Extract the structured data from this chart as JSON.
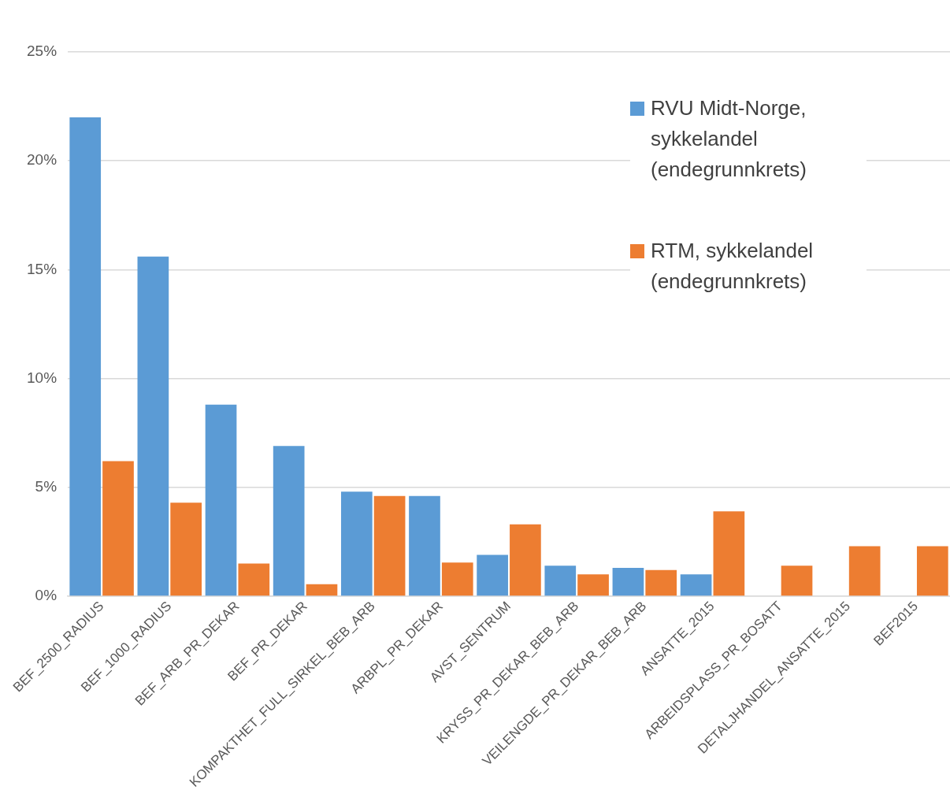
{
  "chart_data": {
    "type": "bar",
    "categories": [
      "BEF_2500_RADIUS",
      "BEF_1000_RADIUS",
      "BEF_ARB_PR_DEKAR",
      "BEF_PR_DEKAR",
      "KOMPAKTHET_FULL_SIRKEL_BEB_ARB",
      "ARBPL_PR_DEKAR",
      "AVST_SENTRUM",
      "KRYSS_PR_DEKAR_BEB_ARB",
      "VEILENGDE_PR_DEKAR_BEB_ARB",
      "ANSATTE_2015",
      "ARBEIDSPLASS_PR_BOSATT",
      "DETALJHANDEL_ANSATTE_2015",
      "BEF2015"
    ],
    "series": [
      {
        "name": "RVU Midt-Norge, sykkelandel (endegrunnkrets)",
        "color": "#5b9bd5",
        "values": [
          22.0,
          15.6,
          8.8,
          6.9,
          4.8,
          4.6,
          1.9,
          1.4,
          1.3,
          1.0,
          null,
          null,
          null
        ]
      },
      {
        "name": "RTM, sykkelandel (endegrunnkrets)",
        "color": "#ed7d31",
        "values": [
          6.2,
          4.3,
          1.5,
          0.55,
          4.6,
          1.55,
          3.3,
          1.0,
          1.2,
          3.9,
          1.4,
          2.3,
          2.3
        ]
      }
    ],
    "ylim": [
      0,
      25
    ],
    "yticks": [
      {
        "value": 0,
        "label": "0%"
      },
      {
        "value": 5,
        "label": "5%"
      },
      {
        "value": 10,
        "label": "10%"
      },
      {
        "value": 15,
        "label": "15%"
      },
      {
        "value": 20,
        "label": "20%"
      },
      {
        "value": 25,
        "label": "25%"
      }
    ],
    "grid": "y",
    "legend": "top right"
  }
}
